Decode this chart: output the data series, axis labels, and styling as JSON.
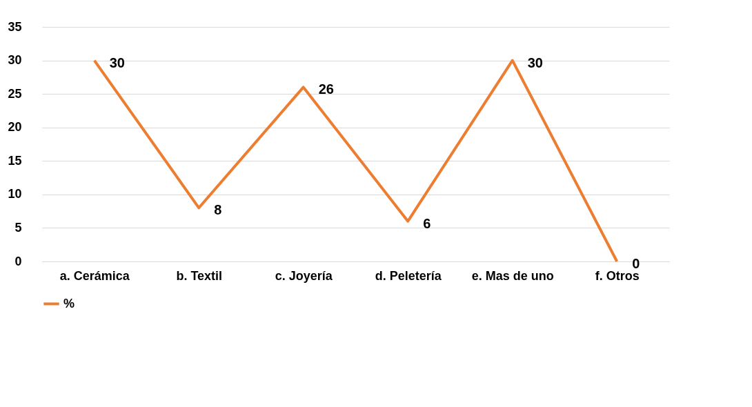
{
  "chart_data": {
    "type": "line",
    "categories": [
      "a. Cerámica",
      "b. Textil",
      "c. Joyería",
      "d. Peletería",
      "e. Mas de uno",
      "f. Otros"
    ],
    "series": [
      {
        "name": "%",
        "color": "#ed7d31",
        "values": [
          30,
          8,
          26,
          6,
          30,
          0
        ]
      }
    ],
    "ylim": [
      0,
      35
    ],
    "yticks": [
      0,
      5,
      10,
      15,
      20,
      25,
      30,
      35
    ],
    "grid": "y",
    "legend": "bottom",
    "data_labels": true,
    "marker": "none",
    "line_style": "solid"
  }
}
